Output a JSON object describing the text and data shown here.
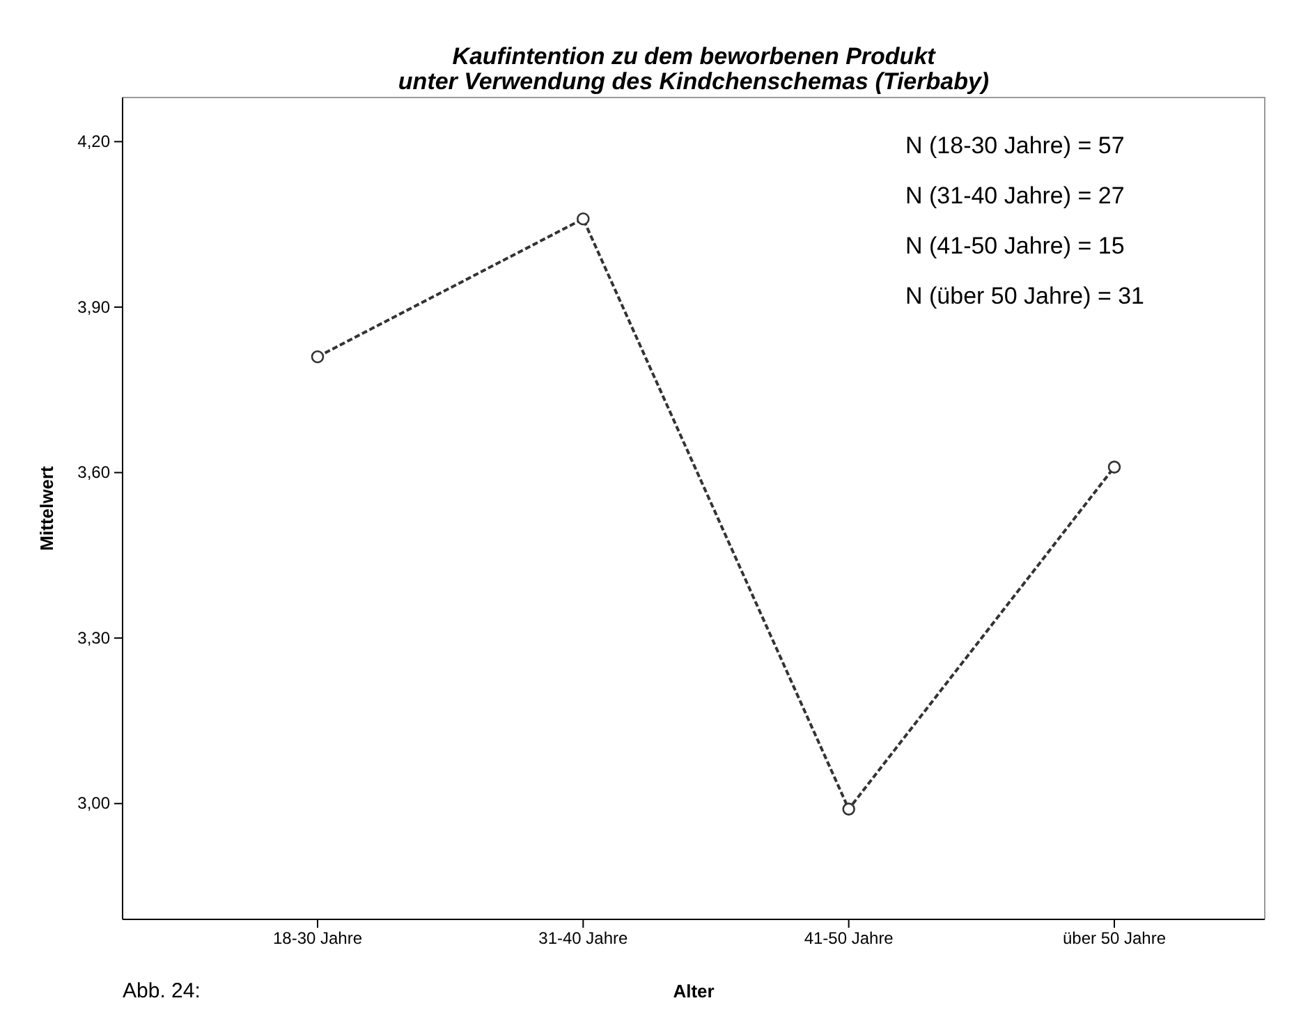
{
  "chart_data": {
    "type": "line",
    "title": "Kaufintention zu dem beworbenen Produkt\nunter Verwendung des Kindchenschemas (Tierbaby)",
    "xlabel": "Alter",
    "ylabel": "Mittelwert",
    "categories": [
      "18-30 Jahre",
      "31-40 Jahre",
      "41-50 Jahre",
      "über 50 Jahre"
    ],
    "series": [
      {
        "color": "#333333",
        "values": [
          3.81,
          4.06,
          2.99,
          3.61
        ]
      }
    ],
    "ylim": [
      2.79,
      4.28
    ],
    "yticks": [
      {
        "value": 3.0,
        "label": "3,00"
      },
      {
        "value": 3.3,
        "label": "3,30"
      },
      {
        "value": 3.6,
        "label": "3,60"
      },
      {
        "value": 3.9,
        "label": "3,90"
      },
      {
        "value": 4.2,
        "label": "4,20"
      }
    ],
    "marker": "circle",
    "line_style": "dashed",
    "grid": false,
    "annotations": [
      "N (18-30 Jahre) = 57",
      "N (31-40 Jahre) = 27",
      "N (41-50 Jahre) = 15",
      "N (über 50 Jahre) = 31",
      "Abb. 24:"
    ]
  }
}
